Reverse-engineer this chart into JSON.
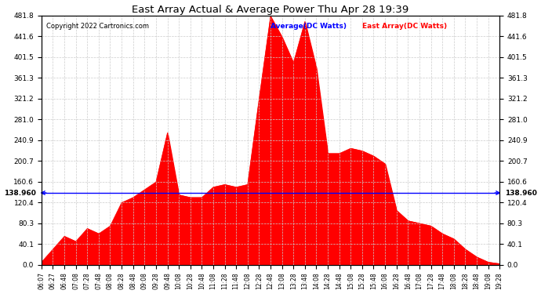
{
  "title": "East Array Actual & Average Power Thu Apr 28 19:39",
  "copyright": "Copyright 2022 Cartronics.com",
  "legend_average": "Average(DC Watts)",
  "legend_east": "East Array(DC Watts)",
  "average_value": 138.96,
  "y_ticks": [
    0.0,
    40.1,
    80.3,
    120.4,
    160.6,
    200.7,
    240.9,
    281.0,
    321.2,
    361.3,
    401.5,
    441.6,
    481.8
  ],
  "y_max": 481.8,
  "background_color": "#ffffff",
  "fill_color": "#ff0000",
  "line_color": "#0000ff",
  "grid_color": "#cccccc",
  "title_color": "#000000",
  "copyright_color": "#000000",
  "legend_avg_color": "#0000ff",
  "legend_east_color": "#ff0000",
  "east_values": [
    5,
    30,
    55,
    45,
    70,
    60,
    75,
    120,
    130,
    145,
    160,
    255,
    135,
    130,
    130,
    150,
    155,
    150,
    155,
    320,
    480,
    440,
    390,
    470,
    380,
    215,
    215,
    225,
    220,
    210,
    195,
    105,
    85,
    80,
    75,
    60,
    50,
    30,
    15,
    5,
    2
  ],
  "x_tick_labels": [
    "06:07",
    "06:27",
    "06:48",
    "07:08",
    "07:28",
    "07:48",
    "08:08",
    "08:28",
    "08:48",
    "09:08",
    "09:28",
    "09:48",
    "10:08",
    "10:28",
    "10:48",
    "11:08",
    "11:28",
    "11:48",
    "12:08",
    "12:28",
    "12:48",
    "13:08",
    "13:28",
    "13:48",
    "14:08",
    "14:28",
    "14:48",
    "15:08",
    "15:28",
    "15:48",
    "16:08",
    "16:28",
    "16:48",
    "17:08",
    "17:28",
    "17:48",
    "18:08",
    "18:28",
    "18:48",
    "19:08",
    "19:28"
  ]
}
